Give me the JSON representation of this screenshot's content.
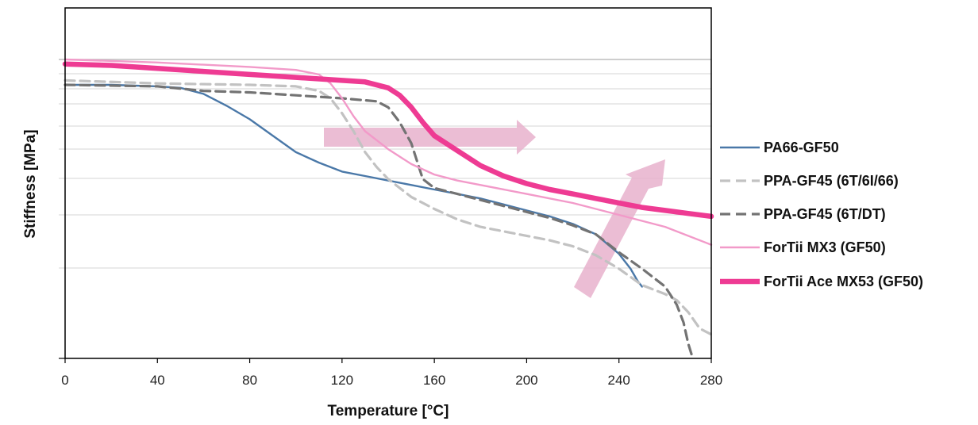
{
  "chart_data": {
    "type": "line",
    "title": "",
    "xlabel": "Temperature [°C]",
    "ylabel": "Stiffness [MPa]",
    "xlim": [
      0,
      280
    ],
    "ylim": [
      0,
      1
    ],
    "x_ticks": [
      0,
      40,
      80,
      120,
      160,
      200,
      240,
      280
    ],
    "y_tick_labels": "none",
    "grid": "horizontal",
    "legend": "right",
    "series": [
      {
        "name": "PA66-GF50",
        "color": "#4a78a8",
        "style": "solid",
        "points": [
          [
            0,
            0.915
          ],
          [
            20,
            0.915
          ],
          [
            40,
            0.91
          ],
          [
            50,
            0.905
          ],
          [
            60,
            0.885
          ],
          [
            70,
            0.845
          ],
          [
            80,
            0.8
          ],
          [
            90,
            0.745
          ],
          [
            100,
            0.69
          ],
          [
            110,
            0.655
          ],
          [
            120,
            0.625
          ],
          [
            130,
            0.61
          ],
          [
            140,
            0.595
          ],
          [
            150,
            0.58
          ],
          [
            160,
            0.565
          ],
          [
            170,
            0.55
          ],
          [
            180,
            0.535
          ],
          [
            190,
            0.515
          ],
          [
            200,
            0.495
          ],
          [
            210,
            0.475
          ],
          [
            220,
            0.45
          ],
          [
            230,
            0.415
          ],
          [
            240,
            0.35
          ],
          [
            245,
            0.3
          ],
          [
            248,
            0.26
          ],
          [
            250,
            0.24
          ]
        ]
      },
      {
        "name": "PPA-GF45 (6T/6I/66)",
        "color": "#c2c2c2",
        "style": "dash",
        "points": [
          [
            0,
            0.93
          ],
          [
            40,
            0.92
          ],
          [
            80,
            0.915
          ],
          [
            100,
            0.91
          ],
          [
            110,
            0.895
          ],
          [
            115,
            0.87
          ],
          [
            120,
            0.82
          ],
          [
            125,
            0.76
          ],
          [
            130,
            0.69
          ],
          [
            135,
            0.64
          ],
          [
            140,
            0.6
          ],
          [
            150,
            0.54
          ],
          [
            160,
            0.5
          ],
          [
            170,
            0.465
          ],
          [
            180,
            0.44
          ],
          [
            190,
            0.425
          ],
          [
            200,
            0.41
          ],
          [
            210,
            0.395
          ],
          [
            220,
            0.375
          ],
          [
            230,
            0.345
          ],
          [
            240,
            0.3
          ],
          [
            250,
            0.245
          ],
          [
            260,
            0.215
          ],
          [
            265,
            0.195
          ],
          [
            270,
            0.155
          ],
          [
            275,
            0.1
          ],
          [
            280,
            0.08
          ]
        ]
      },
      {
        "name": "PPA-GF45 (6T/DT)",
        "color": "#737373",
        "style": "dash",
        "points": [
          [
            0,
            0.915
          ],
          [
            40,
            0.91
          ],
          [
            60,
            0.895
          ],
          [
            80,
            0.89
          ],
          [
            100,
            0.88
          ],
          [
            120,
            0.87
          ],
          [
            135,
            0.86
          ],
          [
            140,
            0.84
          ],
          [
            145,
            0.79
          ],
          [
            150,
            0.72
          ],
          [
            155,
            0.6
          ],
          [
            160,
            0.57
          ],
          [
            170,
            0.55
          ],
          [
            180,
            0.53
          ],
          [
            190,
            0.51
          ],
          [
            200,
            0.49
          ],
          [
            210,
            0.47
          ],
          [
            220,
            0.445
          ],
          [
            230,
            0.415
          ],
          [
            240,
            0.355
          ],
          [
            250,
            0.3
          ],
          [
            260,
            0.24
          ],
          [
            265,
            0.18
          ],
          [
            268,
            0.12
          ],
          [
            270,
            0.05
          ],
          [
            272,
            0.0
          ]
        ]
      },
      {
        "name": "ForTii MX3 (GF50)",
        "color": "#f29ac9",
        "style": "solid",
        "points": [
          [
            0,
            1.0
          ],
          [
            40,
            0.99
          ],
          [
            80,
            0.975
          ],
          [
            100,
            0.965
          ],
          [
            110,
            0.95
          ],
          [
            115,
            0.92
          ],
          [
            120,
            0.87
          ],
          [
            125,
            0.81
          ],
          [
            130,
            0.76
          ],
          [
            140,
            0.7
          ],
          [
            150,
            0.65
          ],
          [
            160,
            0.615
          ],
          [
            170,
            0.595
          ],
          [
            180,
            0.58
          ],
          [
            200,
            0.55
          ],
          [
            220,
            0.52
          ],
          [
            240,
            0.48
          ],
          [
            260,
            0.44
          ],
          [
            280,
            0.38
          ]
        ]
      },
      {
        "name": "ForTii Ace MX53 (GF50)",
        "color": "#ee3b93",
        "style": "solid-thick",
        "points": [
          [
            0,
            0.985
          ],
          [
            20,
            0.98
          ],
          [
            40,
            0.97
          ],
          [
            60,
            0.96
          ],
          [
            80,
            0.95
          ],
          [
            100,
            0.94
          ],
          [
            120,
            0.93
          ],
          [
            130,
            0.925
          ],
          [
            140,
            0.905
          ],
          [
            145,
            0.88
          ],
          [
            150,
            0.84
          ],
          [
            155,
            0.79
          ],
          [
            160,
            0.745
          ],
          [
            170,
            0.695
          ],
          [
            180,
            0.645
          ],
          [
            190,
            0.61
          ],
          [
            200,
            0.585
          ],
          [
            210,
            0.565
          ],
          [
            220,
            0.55
          ],
          [
            230,
            0.535
          ],
          [
            240,
            0.52
          ],
          [
            250,
            0.505
          ],
          [
            260,
            0.495
          ],
          [
            270,
            0.485
          ],
          [
            280,
            0.475
          ]
        ]
      }
    ],
    "annotations": [
      {
        "type": "arrow",
        "direction": "right",
        "color": "#e7b2cd"
      },
      {
        "type": "arrow",
        "direction": "up-right",
        "color": "#e7b2cd"
      }
    ]
  }
}
